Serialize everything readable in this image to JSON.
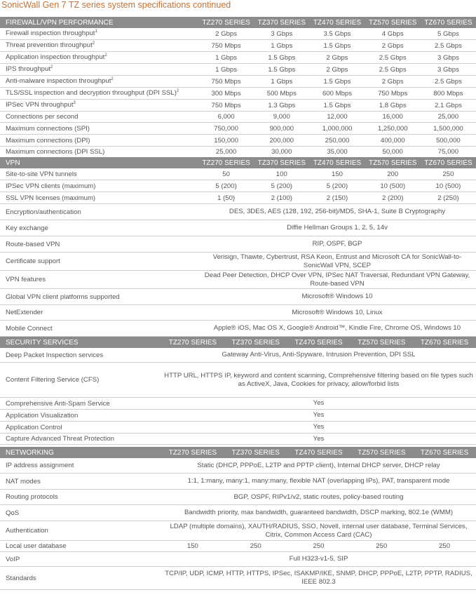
{
  "title": "SonicWall Gen 7 TZ series system specifications continued",
  "sections": [
    {
      "header": "FIREWALL/VPN PERFORMANCE",
      "columns": [
        "TZ270 SERIES",
        "TZ370 SERIES",
        "TZ470 SERIES",
        "TZ570 SERIES",
        "TZ670 SERIES"
      ],
      "rows": [
        {
          "label": "Firewall inspection throughput",
          "sup": "1",
          "values": [
            "2 Gbps",
            "3 Gbps",
            "3.5 Gbps",
            "4 Gbps",
            "5 Gbps"
          ]
        },
        {
          "label": "Threat prevention throughput",
          "sup": "2",
          "values": [
            "750 Mbps",
            "1 Gbps",
            "1.5 Gbps",
            "2 Gbps",
            "2.5 Gbps"
          ]
        },
        {
          "label": "Application inspection throughput",
          "sup": "2",
          "values": [
            "1 Gbps",
            "1.5 Gbps",
            "2 Gbps",
            "2.5 Gbps",
            "3 Gbps"
          ]
        },
        {
          "label": "IPS throughput",
          "sup": "2",
          "values": [
            "1 Gbps",
            "1.5 Gbps",
            "2 Gbps",
            "2.5 Gbps",
            "3 Gbps"
          ]
        },
        {
          "label": "Anti-malware inspection throughput",
          "sup": "2",
          "values": [
            "750 Mbps",
            "1 Gbps",
            "1.5 Gbps",
            "2 Gbps",
            "2.5 Gbps"
          ]
        },
        {
          "label": "TLS/SSL inspection and decryption throughput (DPI SSL)",
          "sup": "2",
          "values": [
            "300 Mbps",
            "500 Mbps",
            "600 Mbps",
            "750 Mbps",
            "800 Mbps"
          ]
        },
        {
          "label": "IPSec VPN throughput",
          "sup": "3",
          "values": [
            "750 Mbps",
            "1.3 Gbps",
            "1.5 Gbps",
            "1.8 Gbps",
            "2.1 Gbps"
          ]
        },
        {
          "label": "Connections per second",
          "values": [
            "6,000",
            "9,000",
            "12,000",
            "16,000",
            "25,000"
          ]
        },
        {
          "label": "Maximum connections (SPI)",
          "values": [
            "750,000",
            "900,000",
            "1,000,000",
            "1,250,000",
            "1,500,000"
          ]
        },
        {
          "label": "Maximum connections (DPI)",
          "values": [
            "150,000",
            "200,000",
            "250,000",
            "400,000",
            "500,000"
          ]
        },
        {
          "label": "Maximum connections (DPI SSL)",
          "values": [
            "25,000",
            "30,000",
            "35,000",
            "50,000",
            "75,000"
          ]
        }
      ]
    },
    {
      "header": "VPN",
      "columns": [
        "TZ270 SERIES",
        "TZ370 SERIES",
        "TZ470 SERIES",
        "TZ570 SERIES",
        "TZ670 SERIES"
      ],
      "rows": [
        {
          "label": "Site-to-site VPN tunnels",
          "values": [
            "50",
            "100",
            "150",
            "200",
            "250"
          ]
        },
        {
          "label": "IPSec VPN clients (maximum)",
          "values": [
            "5 (200)",
            "5 (200)",
            "5 (200)",
            "10 (500)",
            "10 (500)"
          ]
        },
        {
          "label": "SSL VPN licenses (maximum)",
          "values": [
            "1 (50)",
            "2 (100)",
            "2 (150)",
            "2 (200)",
            "2 (250)"
          ]
        },
        {
          "label": "Encryption/authentication",
          "span": "DES, 3DES, AES (128, 192, 256-bit)/MD5, SHA-1, Suite B Cryptography"
        },
        {
          "label": "Key exchange",
          "span": "Diffie Hellman Groups 1, 2, 5, 14v"
        },
        {
          "label": "Route-based VPN",
          "span": "RIP, OSPF, BGP"
        },
        {
          "label": "Certificate support",
          "span": "Verisign, Thawte, Cybertrust, RSA Keon, Entrust and Microsoft CA for SonicWall-to-SonicWall VPN, SCEP"
        },
        {
          "label": "VPN features",
          "span": "Dead Peer Detection, DHCP Over VPN, IPSec NAT Traversal, Redundant VPN Gateway, Route-based VPN"
        },
        {
          "label": "Global VPN client platforms supported",
          "span": "Microsoft® Windows 10"
        },
        {
          "label": "NetExtender",
          "span": "Microsoft® Windows 10, Linux"
        },
        {
          "label": "Mobile Connect",
          "span": "Apple® iOS, Mac OS X, Google® Android™, Kindle Fire, Chrome OS, Windows 10"
        }
      ]
    },
    {
      "header": "SECURITY SERVICES",
      "columns": [
        "TZ270 SERIES",
        "TZ370 SERIES",
        "TZ470 SERIES",
        "TZ570 SERIES",
        "TZ670 SERIES"
      ],
      "rows": [
        {
          "label": "Deep Packet Inspection services",
          "span": "Gateway Anti-Virus, Anti-Spyware, Intrusion Prevention, DPI SSL"
        },
        {
          "label": "Content Filtering Service (CFS)",
          "span": "HTTP URL, HTTPS IP, keyword and content scanning, Comprehensive filtering based on file types such as ActiveX, Java, Cookies for privacy, allow/forbid lists"
        },
        {
          "label": "Comprehensive Anti-Spam Service",
          "span": "Yes"
        },
        {
          "label": "Application Visualization",
          "span": "Yes"
        },
        {
          "label": "Application Control",
          "span": "Yes"
        },
        {
          "label": "Capture Advanced Threat Protection",
          "span": "Yes"
        }
      ]
    },
    {
      "header": "NETWORKING",
      "columns": [
        "TZ270 SERIES",
        "TZ370 SERIES",
        "TZ470 SERIES",
        "TZ570 SERIES",
        "TZ670 SERIES"
      ],
      "rows": [
        {
          "label": "IP address assignment",
          "span": "Static (DHCP, PPPoE, L2TP and PPTP client), Internal DHCP server, DHCP relay"
        },
        {
          "label": "NAT modes",
          "span": "1:1, 1:many, many:1, many:many, flexible NAT (overlapping IPs), PAT, transparent mode"
        },
        {
          "label": "Routing protocols",
          "span": "BGP, OSPF, RIPv1/v2, static routes, policy-based routing"
        },
        {
          "label": "QoS",
          "span": "Bandwidth priority, max bandwidth, guaranteed bandwidth, DSCP marking, 802.1e (WMM)"
        },
        {
          "label": "Authentication",
          "span": "LDAP (multiple domains), XAUTH/RADIUS, SSO, Novell, internal user database, Terminal Services, Citrix, Common Access Card (CAC)"
        },
        {
          "label": "Local user database",
          "values": [
            "150",
            "250",
            "250",
            "250",
            "250"
          ]
        },
        {
          "label": "VoIP",
          "span": "Full H323-v1-5, SIP"
        },
        {
          "label": "Standards",
          "span": "TCP/IP, UDP, ICMP, HTTP, HTTPS, IPSec, ISAKMP/IKE, SNMP, DHCP, PPPoE, L2TP, PPTP, RADIUS, IEEE 802.3"
        }
      ]
    }
  ]
}
